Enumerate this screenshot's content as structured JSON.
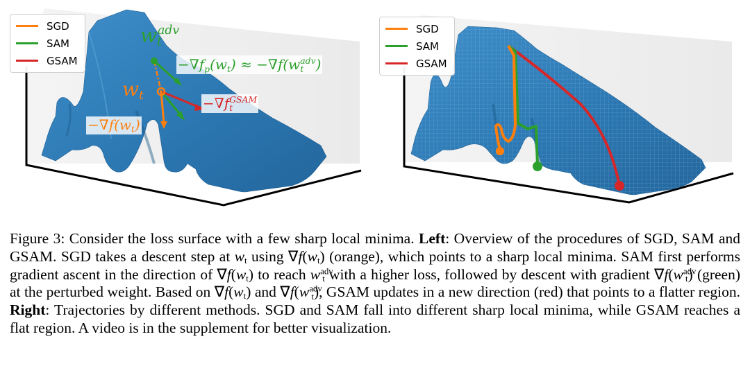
{
  "colors": {
    "sgd": "#ff7f0e",
    "sam": "#2ca02c",
    "gsam": "#d62728",
    "surface": "#2e7db8"
  },
  "legend": {
    "items": [
      "SGD",
      "SAM",
      "GSAM"
    ]
  },
  "left_panel": {
    "w_adv_base": "w",
    "w_adv_sub": "t",
    "w_adv_sup": "adv",
    "w_t_base": "w",
    "w_t_sub": "t",
    "label_green_a": "−∇f",
    "label_green_p": "p",
    "label_green_b": "(w",
    "label_green_c": ") ≈ −∇f(w",
    "label_green_sup": "adv",
    "label_green_d": ")",
    "label_red_a": "−∇f",
    "label_red_sup": "GSAM",
    "label_orange_a": "−∇f(w",
    "label_orange_b": ")"
  },
  "caption": {
    "p1": "Figure 3: Consider the loss surface with a few sharp local minima. ",
    "left_bold": "Left",
    "p2": ": Overview of the procedures of SGD, SAM and GSAM. SGD takes a descent step at ",
    "p3": " using ∇",
    "p4": "(",
    "p5": ") (orange), which points to a sharp local minima. SAM first performs gradient ascent in the direction of ∇",
    "p6": ") to reach ",
    "p7": " with a higher loss, followed by descent with gradient ∇",
    "p8": ") (green) at the perturbed weight. Based on ∇",
    "p9": ") and ∇",
    "p10": "), GSAM updates in a new direction (red) that points to a flatter region. ",
    "right_bold": "Right",
    "p11": ": Trajectories by different methods. SGD and SAM fall into different sharp local minima, while GSAM reaches a flat region. A video is in the supplement for better visualization.",
    "math_w": "w",
    "math_t": "t",
    "math_f": "f",
    "math_adv": "adv"
  }
}
